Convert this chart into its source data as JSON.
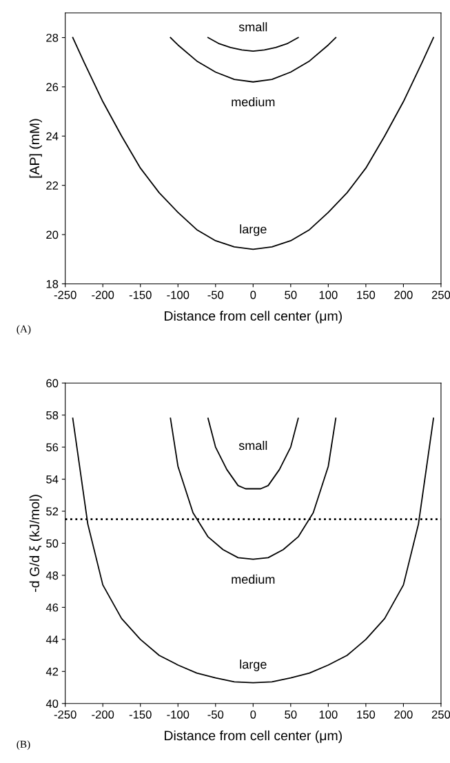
{
  "chart_data": [
    {
      "type": "line",
      "xlabel": "Distance from cell center (μm)",
      "ylabel": "[AP] (mM)",
      "xlim": [
        -250,
        250
      ],
      "xticks": [
        -250,
        -200,
        -150,
        -100,
        -50,
        0,
        50,
        100,
        150,
        200,
        250
      ],
      "ylim": [
        18,
        29
      ],
      "yticks": [
        18,
        20,
        22,
        24,
        26,
        28
      ],
      "grid": false,
      "legend": false,
      "marker": "none",
      "line_style": "solid",
      "series": [
        {
          "name": "large",
          "color": "#000000",
          "x": [
            -240,
            -225,
            -200,
            -175,
            -150,
            -125,
            -100,
            -75,
            -50,
            -25,
            0,
            25,
            50,
            75,
            100,
            125,
            150,
            175,
            200,
            225,
            240
          ],
          "values": [
            28.0,
            27.0,
            25.4,
            24.0,
            22.7,
            21.7,
            20.9,
            20.2,
            19.75,
            19.5,
            19.4,
            19.5,
            19.75,
            20.2,
            20.9,
            21.7,
            22.7,
            24.0,
            25.4,
            27.0,
            28.0
          ]
        },
        {
          "name": "medium",
          "color": "#000000",
          "x": [
            -110,
            -100,
            -75,
            -50,
            -25,
            0,
            25,
            50,
            75,
            100,
            110
          ],
          "values": [
            28.0,
            27.7,
            27.05,
            26.6,
            26.3,
            26.2,
            26.3,
            26.6,
            27.05,
            27.7,
            28.0
          ]
        },
        {
          "name": "small",
          "color": "#000000",
          "x": [
            -60,
            -45,
            -30,
            -15,
            0,
            15,
            30,
            45,
            60
          ],
          "values": [
            28.0,
            27.75,
            27.6,
            27.5,
            27.45,
            27.5,
            27.6,
            27.75,
            28.0
          ]
        }
      ],
      "annotations": [
        "(A)"
      ]
    },
    {
      "type": "line",
      "xlabel": "Distance from cell center (μm)",
      "ylabel": "-d G/d ξ (kJ/mol)",
      "xlim": [
        -250,
        250
      ],
      "xticks": [
        -250,
        -200,
        -150,
        -100,
        -50,
        0,
        50,
        100,
        150,
        200,
        250
      ],
      "ylim": [
        40,
        60
      ],
      "yticks": [
        40,
        42,
        44,
        46,
        48,
        50,
        52,
        54,
        56,
        58,
        60
      ],
      "grid": false,
      "legend": false,
      "marker": "none",
      "line_style": "solid",
      "ref_lines": [
        {
          "axis": "y",
          "value": 51.5,
          "color": "#000000",
          "line_style": "dotted"
        }
      ],
      "series": [
        {
          "name": "large",
          "color": "#000000",
          "x": [
            -240,
            -230,
            -220,
            -200,
            -175,
            -150,
            -125,
            -100,
            -75,
            -50,
            -25,
            0,
            25,
            50,
            75,
            100,
            125,
            150,
            175,
            200,
            220,
            230,
            240
          ],
          "values": [
            57.8,
            54.5,
            51.2,
            47.4,
            45.3,
            44.0,
            43.0,
            42.4,
            41.9,
            41.6,
            41.35,
            41.3,
            41.35,
            41.6,
            41.9,
            42.4,
            43.0,
            44.0,
            45.3,
            47.4,
            51.2,
            54.5,
            57.8
          ]
        },
        {
          "name": "medium",
          "color": "#000000",
          "x": [
            -110,
            -100,
            -80,
            -60,
            -40,
            -20,
            0,
            20,
            40,
            60,
            80,
            100,
            110
          ],
          "values": [
            57.8,
            54.8,
            51.9,
            50.4,
            49.6,
            49.1,
            49.0,
            49.1,
            49.6,
            50.4,
            51.9,
            54.8,
            57.8
          ]
        },
        {
          "name": "small",
          "color": "#000000",
          "x": [
            -60,
            -50,
            -35,
            -20,
            -10,
            0,
            10,
            20,
            35,
            50,
            60
          ],
          "values": [
            57.8,
            56.0,
            54.6,
            53.6,
            53.4,
            53.4,
            53.4,
            53.6,
            54.6,
            56.0,
            57.8
          ]
        }
      ],
      "annotations": [
        "(B)"
      ]
    }
  ]
}
